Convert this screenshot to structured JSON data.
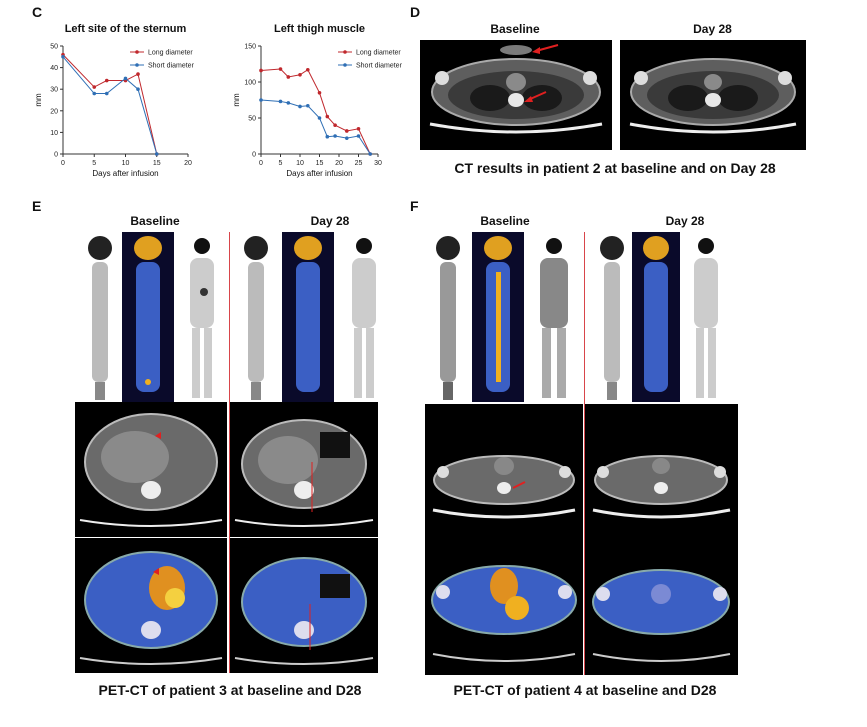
{
  "panels": {
    "c": {
      "letter": "C"
    },
    "d": {
      "letter": "D",
      "left_title": "Baseline",
      "right_title": "Day 28",
      "caption": "CT results in patient 2 at baseline and on Day 28"
    },
    "e": {
      "letter": "E",
      "left_title": "Baseline",
      "right_title": "Day 28",
      "caption": "PET-CT of patient 3 at baseline and D28"
    },
    "f": {
      "letter": "F",
      "left_title": "Baseline",
      "right_title": "Day 28",
      "caption": "PET-CT of patient 4 at baseline and D28"
    }
  },
  "colors": {
    "long": "#c0282d",
    "short": "#2f6fb5",
    "divider": "#d8454a",
    "arrow": "#e02020"
  },
  "chart_data": [
    {
      "type": "line",
      "title": "Left site of the sternum",
      "xlabel": "Days after infusion",
      "ylabel": "mm",
      "xlim": [
        0,
        20
      ],
      "ylim": [
        0,
        50
      ],
      "xticks": [
        0,
        5,
        10,
        15,
        20
      ],
      "yticks": [
        0,
        10,
        20,
        30,
        40,
        50
      ],
      "legend": "top-right",
      "series": [
        {
          "name": "Long diameter",
          "color": "#c0282d",
          "marker": "circle",
          "x": [
            0,
            5,
            7,
            10,
            12,
            15
          ],
          "y": [
            46,
            31,
            34,
            34,
            37,
            0
          ]
        },
        {
          "name": "Short diameter",
          "color": "#2f6fb5",
          "marker": "circle",
          "x": [
            0,
            5,
            7,
            10,
            12,
            15
          ],
          "y": [
            45,
            28,
            28,
            35,
            30,
            0
          ]
        }
      ]
    },
    {
      "type": "line",
      "title": "Left thigh muscle",
      "xlabel": "Days after infusion",
      "ylabel": "mm",
      "xlim": [
        0,
        30
      ],
      "ylim": [
        0,
        150
      ],
      "xticks": [
        0,
        5,
        10,
        15,
        20,
        25,
        30
      ],
      "yticks": [
        0,
        50,
        100,
        150
      ],
      "legend": "top-right",
      "series": [
        {
          "name": "Long diameter",
          "color": "#c0282d",
          "marker": "circle",
          "x": [
            0,
            5,
            7,
            10,
            12,
            15,
            17,
            19,
            22,
            25,
            28
          ],
          "y": [
            116,
            118,
            107,
            110,
            117,
            85,
            52,
            40,
            32,
            35,
            0
          ]
        },
        {
          "name": "Short diameter",
          "color": "#2f6fb5",
          "marker": "circle",
          "x": [
            0,
            5,
            7,
            10,
            12,
            15,
            17,
            19,
            22,
            25,
            28
          ],
          "y": [
            75,
            73,
            71,
            66,
            67,
            50,
            24,
            25,
            22,
            25,
            0
          ]
        }
      ]
    }
  ]
}
